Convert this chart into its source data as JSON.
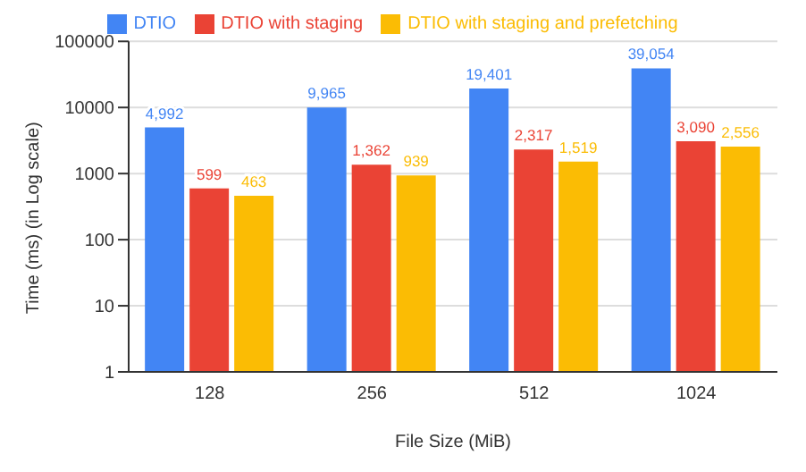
{
  "chart_data": {
    "type": "bar",
    "xlabel": "File Size (MiB)",
    "ylabel": "Time (ms) (in Log scale)",
    "categories": [
      "128",
      "256",
      "512",
      "1024"
    ],
    "series": [
      {
        "name": "DTIO",
        "color": "#4285f4",
        "values": [
          4992,
          9965,
          19401,
          39054
        ],
        "value_labels": [
          "4,992",
          "9,965",
          "19,401",
          "39,054"
        ]
      },
      {
        "name": "DTIO with staging",
        "color": "#ea4335",
        "values": [
          599,
          1362,
          2317,
          3090
        ],
        "value_labels": [
          "599",
          "1,362",
          "2,317",
          "3,090"
        ]
      },
      {
        "name": "DTIO with staging and prefetching",
        "color": "#fbbc04",
        "values": [
          463,
          939,
          1519,
          2556
        ],
        "value_labels": [
          "463",
          "939",
          "1,519",
          "2,556"
        ]
      }
    ],
    "log": "y",
    "ylim": [
      1,
      100000
    ],
    "yticks": [
      1,
      10,
      100,
      1000,
      10000,
      100000
    ],
    "grid": "y",
    "legend": "top"
  }
}
